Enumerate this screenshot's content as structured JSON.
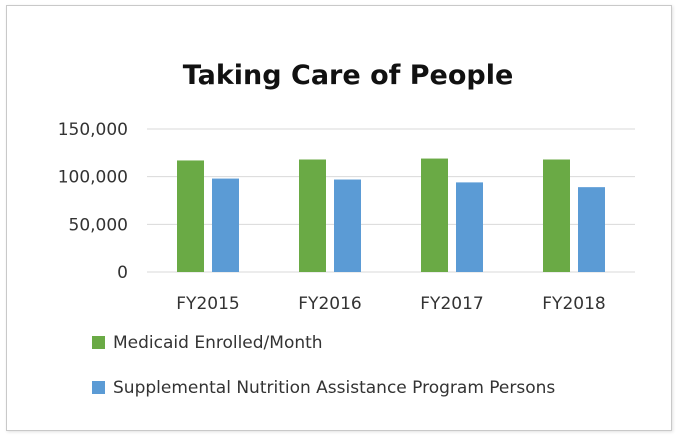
{
  "chart_data": {
    "type": "bar",
    "title": "Taking Care of People",
    "categories": [
      "FY2015",
      "FY2016",
      "FY2017",
      "FY2018"
    ],
    "series": [
      {
        "name": "Medicaid Enrolled/Month",
        "color": "#6aaa45",
        "values": [
          117000,
          118000,
          119000,
          118000
        ]
      },
      {
        "name": "Supplemental Nutrition Assistance Program Persons",
        "color": "#5b9bd5",
        "values": [
          98000,
          97000,
          94000,
          89000
        ]
      }
    ],
    "ylim": [
      0,
      150000
    ],
    "yticks": [
      0,
      50000,
      100000,
      150000
    ],
    "ytick_labels": [
      "0",
      "50,000",
      "100,000",
      "150,000"
    ],
    "grid": true,
    "legend_position": "bottom-left",
    "gridline_color": "#d9d9d9",
    "xlabel": "",
    "ylabel": ""
  }
}
